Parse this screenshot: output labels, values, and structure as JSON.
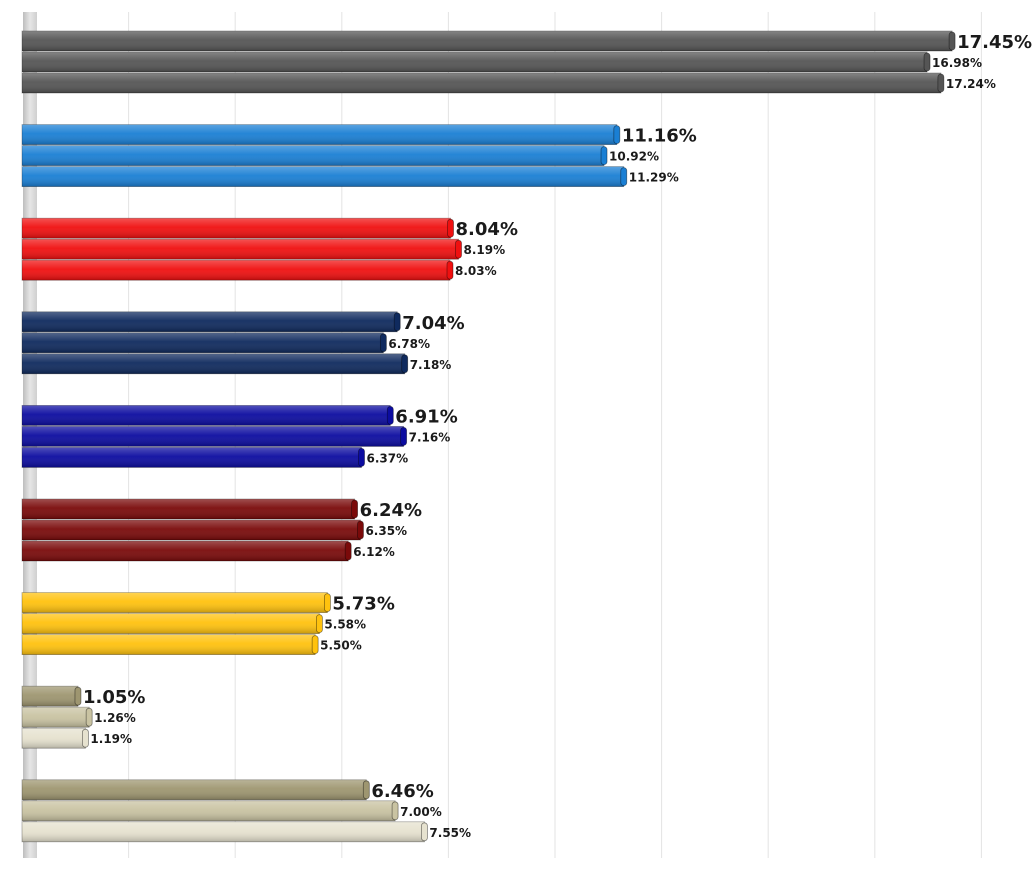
{
  "chart_data": {
    "type": "bar",
    "orientation": "horizontal",
    "title": "",
    "xlabel": "",
    "ylabel": "",
    "xlim": [
      0,
      18
    ],
    "grid": true,
    "categories": [
      {
        "name": "",
        "values": [
          17.45,
          16.98,
          17.24
        ],
        "colors": [
          "#555555",
          "#555555",
          "#555555"
        ]
      },
      {
        "name": "",
        "values": [
          11.16,
          10.92,
          11.29
        ],
        "colors": [
          "#1a7fd4",
          "#1a7fd4",
          "#1a7fd4"
        ]
      },
      {
        "name": "",
        "values": [
          8.04,
          8.19,
          8.03
        ],
        "colors": [
          "#f01010",
          "#f01010",
          "#f01010"
        ]
      },
      {
        "name": "",
        "values": [
          7.04,
          6.78,
          7.18
        ],
        "colors": [
          "#0f2a5e",
          "#0f2a5e",
          "#0f2a5e"
        ]
      },
      {
        "name": "",
        "values": [
          6.91,
          7.16,
          6.37
        ],
        "colors": [
          "#0c0ca0",
          "#0c0ca0",
          "#0c0ca0"
        ]
      },
      {
        "name": "",
        "values": [
          6.24,
          6.35,
          6.12
        ],
        "colors": [
          "#7a0a0a",
          "#7a0a0a",
          "#7a0a0a"
        ]
      },
      {
        "name": "",
        "values": [
          5.73,
          5.58,
          5.5
        ],
        "colors": [
          "#ffc20e",
          "#ffc20e",
          "#ffc20e"
        ]
      },
      {
        "name": "",
        "values": [
          1.05,
          1.26,
          1.19
        ],
        "colors": [
          "#9e9670",
          "#c9c3a2",
          "#e6e2cf"
        ]
      },
      {
        "name": "",
        "values": [
          6.46,
          7.0,
          7.55
        ],
        "colors": [
          "#9e9670",
          "#c9c3a2",
          "#e6e2cf"
        ]
      }
    ],
    "labels": [
      [
        "17.45%",
        "16.98%",
        "17.24%"
      ],
      [
        "11.16%",
        "10.92%",
        "11.29%"
      ],
      [
        "8.04%",
        "8.19%",
        "8.03%"
      ],
      [
        "7.04%",
        "6.78%",
        "7.18%"
      ],
      [
        "6.91%",
        "7.16%",
        "6.37%"
      ],
      [
        "6.24%",
        "6.35%",
        "6.12%"
      ],
      [
        "5.73%",
        "5.58%",
        "5.50%"
      ],
      [
        "1.05%",
        "1.26%",
        "1.19%"
      ],
      [
        "6.46%",
        "7.00%",
        "7.55%"
      ]
    ]
  }
}
